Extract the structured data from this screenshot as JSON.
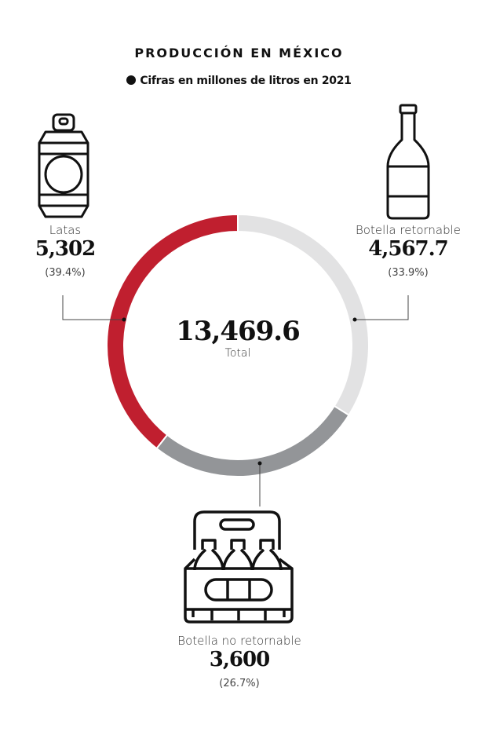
{
  "title": "PRODUCCIÓN EN MÉXICO",
  "subtitle": "Cifras en millones de litros en 2021",
  "chart_data": {
    "type": "pie",
    "variant": "donut",
    "title": "PRODUCCIÓN EN MÉXICO",
    "subtitle": "Cifras en millones de litros en 2021",
    "total": {
      "value": "13,469.6",
      "label": "Total"
    },
    "slices": [
      {
        "name": "Botella retornable",
        "value": 4567.7,
        "value_label": "4,567.7",
        "pct_label": "(33.9%)",
        "color": "#e2e2e3",
        "icon": "bottle-icon"
      },
      {
        "name": "Botella no retornable",
        "value": 3600,
        "value_label": "3,600",
        "pct_label": "(26.7%)",
        "color": "#939598",
        "icon": "six-pack-icon"
      },
      {
        "name": "Latas",
        "value": 5302,
        "value_label": "5,302",
        "pct_label": "(39.4%)",
        "color": "#c01f2f",
        "icon": "can-icon"
      }
    ]
  }
}
